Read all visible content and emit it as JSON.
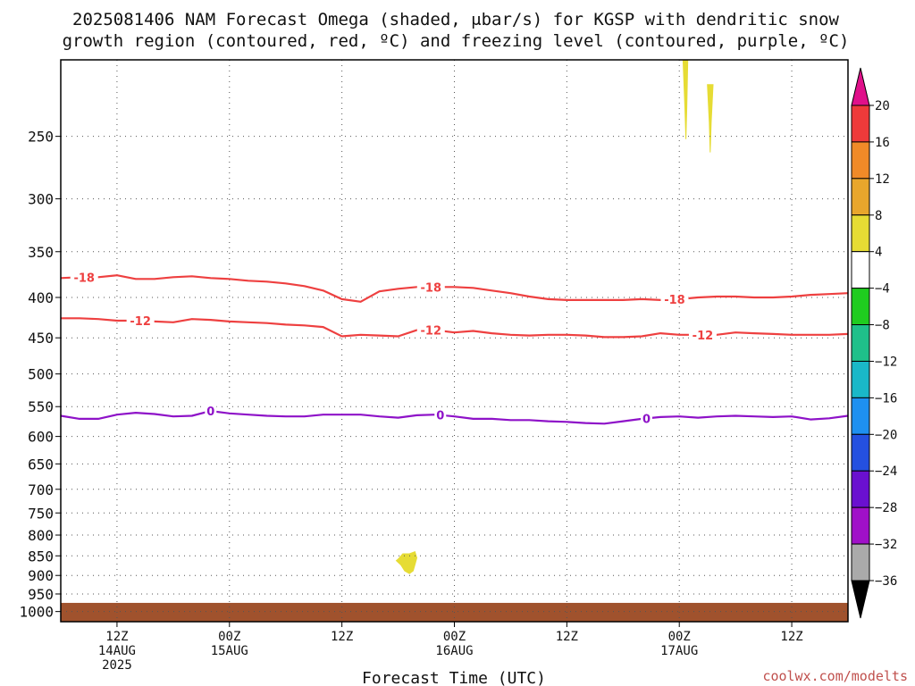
{
  "chart_data": {
    "type": "time-height",
    "title_lines": [
      "2025081406 NAM Forecast Omega (shaded, μbar/s) for KGSP with dendritic snow",
      "growth region (contoured, red, ºC) and freezing level (contoured, purple, ºC)"
    ],
    "xlabel": "Forecast Time (UTC)",
    "credit": "coolwx.com/modelts",
    "x_range_hours": [
      0,
      84
    ],
    "x_ticks": [
      {
        "hour": 6,
        "lines": [
          "12Z",
          "14AUG",
          "2025"
        ]
      },
      {
        "hour": 18,
        "lines": [
          "00Z",
          "15AUG"
        ]
      },
      {
        "hour": 30,
        "lines": [
          "12Z"
        ]
      },
      {
        "hour": 42,
        "lines": [
          "00Z",
          "16AUG"
        ]
      },
      {
        "hour": 54,
        "lines": [
          "12Z"
        ]
      },
      {
        "hour": 66,
        "lines": [
          "00Z",
          "17AUG"
        ]
      },
      {
        "hour": 78,
        "lines": [
          "12Z"
        ]
      }
    ],
    "y_axis": {
      "scale": "log",
      "units": "hPa",
      "range": [
        1030,
        200
      ],
      "ticks": [
        250,
        300,
        350,
        400,
        450,
        500,
        550,
        600,
        650,
        700,
        750,
        800,
        850,
        900,
        950,
        1000
      ]
    },
    "colorbar": {
      "labels": [
        "20",
        "16",
        "12",
        "8",
        "4",
        "−4",
        "−8",
        "−12",
        "−16",
        "−20",
        "−24",
        "−28",
        "−32",
        "−36"
      ],
      "bins": [
        {
          "from": 16,
          "to": 20,
          "color": "#ee3a3a"
        },
        {
          "from": 12,
          "to": 16,
          "color": "#f08a28"
        },
        {
          "from": 8,
          "to": 12,
          "color": "#e8a62c"
        },
        {
          "from": 4,
          "to": 8,
          "color": "#e6dc34"
        },
        {
          "from": -4,
          "to": 4,
          "color": "#ffffff"
        },
        {
          "from": -8,
          "to": -4,
          "color": "#1fcc1f"
        },
        {
          "from": -12,
          "to": -8,
          "color": "#1fc08a"
        },
        {
          "from": -16,
          "to": -12,
          "color": "#1ab8c8"
        },
        {
          "from": -20,
          "to": -16,
          "color": "#1e90f0"
        },
        {
          "from": -24,
          "to": -20,
          "color": "#2450e0"
        },
        {
          "from": -28,
          "to": -24,
          "color": "#6a10d0"
        },
        {
          "from": -32,
          "to": -28,
          "color": "#a010c8"
        },
        {
          "from": -36,
          "to": -32,
          "color": "#aaaaaa"
        }
      ],
      "top_arrow_color": "#e0108a",
      "bottom_arrow_color": "#000000"
    },
    "contours": [
      {
        "label": "-18",
        "color": "#ee4040",
        "label_at_hours": [
          2.5,
          39.5,
          65.5
        ],
        "points": [
          [
            0,
            378
          ],
          [
            2,
            377
          ],
          [
            4,
            377
          ],
          [
            6,
            375
          ],
          [
            8,
            379
          ],
          [
            10,
            379
          ],
          [
            12,
            377
          ],
          [
            14,
            376
          ],
          [
            16,
            378
          ],
          [
            18,
            379
          ],
          [
            20,
            381
          ],
          [
            22,
            382
          ],
          [
            24,
            384
          ],
          [
            26,
            387
          ],
          [
            28,
            392
          ],
          [
            30,
            402
          ],
          [
            32,
            405
          ],
          [
            34,
            393
          ],
          [
            36,
            390
          ],
          [
            38,
            388
          ],
          [
            40,
            388
          ],
          [
            42,
            388
          ],
          [
            44,
            389
          ],
          [
            46,
            392
          ],
          [
            48,
            395
          ],
          [
            50,
            399
          ],
          [
            52,
            402
          ],
          [
            54,
            403
          ],
          [
            56,
            403
          ],
          [
            58,
            403
          ],
          [
            60,
            403
          ],
          [
            62,
            402
          ],
          [
            64,
            403
          ],
          [
            66,
            402
          ],
          [
            68,
            400
          ],
          [
            70,
            399
          ],
          [
            72,
            399
          ],
          [
            74,
            400
          ],
          [
            76,
            400
          ],
          [
            78,
            399
          ],
          [
            80,
            397
          ],
          [
            82,
            396
          ],
          [
            84,
            395
          ]
        ]
      },
      {
        "label": "-12",
        "color": "#ee4040",
        "label_at_hours": [
          8.5,
          39.5,
          68.5
        ],
        "points": [
          [
            0,
            425
          ],
          [
            2,
            425
          ],
          [
            4,
            426
          ],
          [
            6,
            428
          ],
          [
            8,
            428
          ],
          [
            10,
            429
          ],
          [
            12,
            430
          ],
          [
            14,
            426
          ],
          [
            16,
            427
          ],
          [
            18,
            429
          ],
          [
            20,
            430
          ],
          [
            22,
            431
          ],
          [
            24,
            433
          ],
          [
            26,
            434
          ],
          [
            28,
            436
          ],
          [
            30,
            448
          ],
          [
            32,
            446
          ],
          [
            34,
            447
          ],
          [
            36,
            448
          ],
          [
            38,
            440
          ],
          [
            40,
            440
          ],
          [
            42,
            443
          ],
          [
            44,
            441
          ],
          [
            46,
            444
          ],
          [
            48,
            446
          ],
          [
            50,
            447
          ],
          [
            52,
            446
          ],
          [
            54,
            446
          ],
          [
            56,
            447
          ],
          [
            58,
            449
          ],
          [
            60,
            449
          ],
          [
            62,
            448
          ],
          [
            64,
            444
          ],
          [
            66,
            446
          ],
          [
            68,
            446
          ],
          [
            70,
            446
          ],
          [
            72,
            443
          ],
          [
            74,
            444
          ],
          [
            76,
            445
          ],
          [
            78,
            446
          ],
          [
            80,
            446
          ],
          [
            82,
            446
          ],
          [
            84,
            445
          ]
        ]
      },
      {
        "label": "0",
        "color": "#8e12c8",
        "label_at_hours": [
          16,
          40.5,
          62.5
        ],
        "points": [
          [
            0,
            565
          ],
          [
            2,
            570
          ],
          [
            4,
            570
          ],
          [
            6,
            563
          ],
          [
            8,
            560
          ],
          [
            10,
            562
          ],
          [
            12,
            566
          ],
          [
            14,
            565
          ],
          [
            16,
            557
          ],
          [
            18,
            561
          ],
          [
            20,
            563
          ],
          [
            22,
            565
          ],
          [
            24,
            566
          ],
          [
            26,
            566
          ],
          [
            28,
            563
          ],
          [
            30,
            563
          ],
          [
            32,
            563
          ],
          [
            34,
            566
          ],
          [
            36,
            568
          ],
          [
            38,
            564
          ],
          [
            40,
            563
          ],
          [
            42,
            566
          ],
          [
            44,
            570
          ],
          [
            46,
            570
          ],
          [
            48,
            572
          ],
          [
            50,
            572
          ],
          [
            52,
            574
          ],
          [
            54,
            575
          ],
          [
            56,
            577
          ],
          [
            58,
            578
          ],
          [
            60,
            574
          ],
          [
            62,
            570
          ],
          [
            64,
            567
          ],
          [
            66,
            566
          ],
          [
            68,
            568
          ],
          [
            70,
            566
          ],
          [
            72,
            565
          ],
          [
            74,
            566
          ],
          [
            76,
            567
          ],
          [
            78,
            566
          ],
          [
            80,
            571
          ],
          [
            82,
            569
          ],
          [
            84,
            565
          ]
        ]
      }
    ],
    "shaded_regions": [
      {
        "value_bin": "4 to 8",
        "color": "#e6dc34",
        "points": [
          [
            66.4,
            200
          ],
          [
            66.6,
            230
          ],
          [
            66.7,
            252
          ],
          [
            66.8,
            230
          ],
          [
            66.9,
            200
          ]
        ]
      },
      {
        "value_bin": "4 to 8",
        "color": "#e6dc34",
        "points": [
          [
            69.0,
            215
          ],
          [
            69.2,
            240
          ],
          [
            69.3,
            262
          ],
          [
            69.4,
            240
          ],
          [
            69.6,
            215
          ]
        ]
      },
      {
        "value_bin": "4 to 8",
        "color": "#e6dc34",
        "points": [
          [
            36.0,
            858
          ],
          [
            36.5,
            845
          ],
          [
            37.2,
            845
          ],
          [
            37.8,
            840
          ],
          [
            38.0,
            855
          ],
          [
            37.8,
            872
          ],
          [
            37.6,
            888
          ],
          [
            37.2,
            895
          ],
          [
            36.7,
            888
          ],
          [
            36.3,
            873
          ],
          [
            35.8,
            862
          ]
        ]
      }
    ],
    "terrain": {
      "color": "#a0522d",
      "top_hpa": 975,
      "bottom_hpa": 1030
    },
    "grid": "dotted"
  }
}
